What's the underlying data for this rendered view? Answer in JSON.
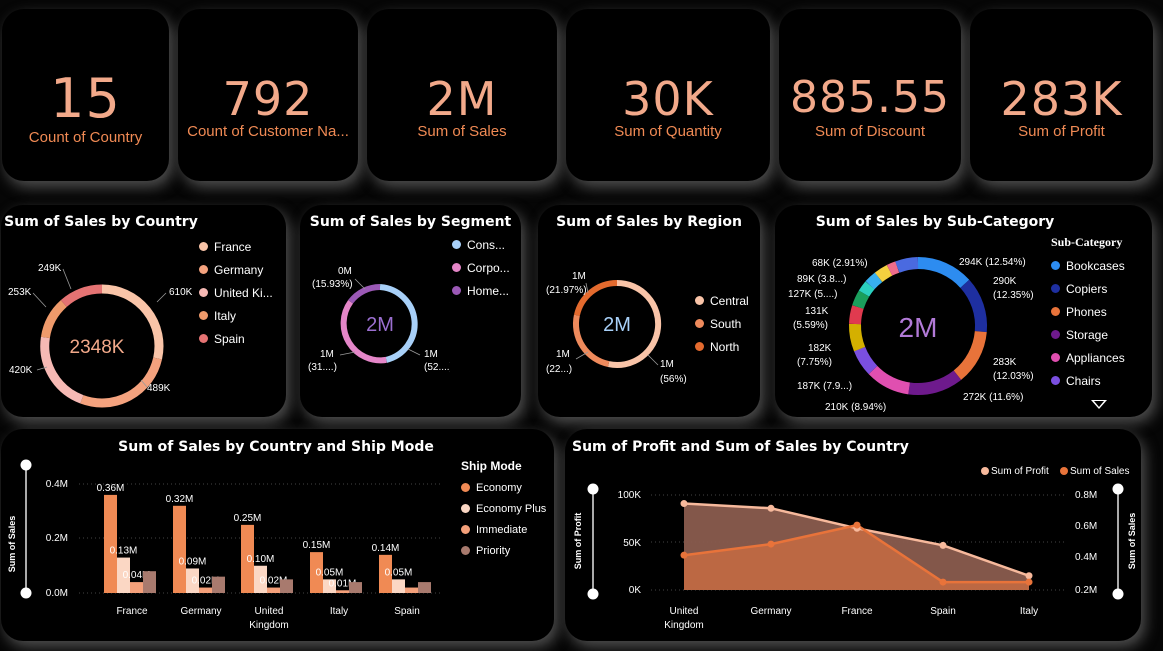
{
  "kpis": [
    {
      "value": "15",
      "label": "Count of Country"
    },
    {
      "value": "792",
      "label": "Count of Customer Na..."
    },
    {
      "value": "2M",
      "label": "Sum of Sales"
    },
    {
      "value": "30K",
      "label": "Sum of Quantity"
    },
    {
      "value": "885.55",
      "label": "Sum of Discount"
    },
    {
      "value": "283K",
      "label": "Sum of Profit"
    }
  ],
  "country_donut": {
    "title": "Sum of Sales by Country",
    "center": "2348K",
    "legend": [
      {
        "name": "France",
        "color": "#f9c4a8"
      },
      {
        "name": "Germany",
        "color": "#f4a27e"
      },
      {
        "name": "United Ki...",
        "color": "#f6b9b4"
      },
      {
        "name": "Italy",
        "color": "#ee9a6b"
      },
      {
        "name": "Spain",
        "color": "#e57373"
      }
    ],
    "labels": [
      "610K",
      "489K",
      "420K",
      "253K",
      "249K"
    ]
  },
  "segment_donut": {
    "title": "Sum of Sales by Segment",
    "center": "2M",
    "legend": [
      {
        "name": "Cons...",
        "color": "#a8d0f8"
      },
      {
        "name": "Corpo...",
        "color": "#e486c8"
      },
      {
        "name": "Home...",
        "color": "#9b59b6"
      }
    ],
    "labels": [
      "0M",
      "(15.93%)",
      "1M",
      "(52....)",
      "1M",
      "(31....)"
    ]
  },
  "region_donut": {
    "title": "Sum of Sales by Region",
    "center": "2M",
    "legend": [
      {
        "name": "Central",
        "color": "#f9c4a8"
      },
      {
        "name": "South",
        "color": "#ee8a5c"
      },
      {
        "name": "North",
        "color": "#e36a2e"
      }
    ],
    "labels": [
      "1M",
      "(21.97%)",
      "1M",
      "(22...)",
      "1M",
      "(56%)"
    ]
  },
  "subcat_donut": {
    "title": "Sum of Sales by Sub-Category",
    "center": "2M",
    "legend_title": "Sub-Category",
    "legend": [
      {
        "name": "Bookcases",
        "color": "#2d8cf0"
      },
      {
        "name": "Copiers",
        "color": "#1e2fa0"
      },
      {
        "name": "Phones",
        "color": "#e8733a"
      },
      {
        "name": "Storage",
        "color": "#6e1a8c"
      },
      {
        "name": "Appliances",
        "color": "#e04fb0"
      },
      {
        "name": "Chairs",
        "color": "#7a4fe0"
      }
    ],
    "labels": [
      "294K (12.54%)",
      "290K",
      "(12.35%)",
      "283K",
      "(12.03%)",
      "272K (11.6%)",
      "210K (8.94%)",
      "187K (7.9...)",
      "182K",
      "(7.75%)",
      "131K",
      "(5.59%)",
      "127K (5....)",
      "89K (3.8...)",
      "68K (2.91%)"
    ]
  },
  "shipmode_chart": {
    "title": "Sum of Sales by Country and Ship Mode",
    "ylabel": "Sum of Sales",
    "legend_title": "Ship Mode",
    "yticks": [
      "0.4M",
      "0.2M",
      "0.0M"
    ],
    "xtick_lines": [
      [
        "France"
      ],
      [
        "Germany"
      ],
      [
        "United",
        "Kingdom"
      ],
      [
        "Italy"
      ],
      [
        "Spain"
      ]
    ]
  },
  "profit_chart": {
    "title": "Sum of Profit and Sum of Sales by Country",
    "ylabel_left": "Sum of Profit",
    "ylabel_right": "Sum of Sales",
    "yticks_left": [
      "100K",
      "50K",
      "0K"
    ],
    "yticks_right": [
      "0.8M",
      "0.6M",
      "0.4M",
      "0.2M"
    ],
    "xtick_lines": [
      [
        "United",
        "Kingdom"
      ],
      [
        "Germany"
      ],
      [
        "France"
      ],
      [
        "Spain"
      ],
      [
        "Italy"
      ]
    ]
  },
  "chart_data": [
    {
      "type": "bar",
      "title": "Sum of Sales by Country and Ship Mode",
      "ylabel": "Sum of Sales",
      "xlabel": "",
      "ylim": [
        0,
        0.4
      ],
      "categories": [
        "France",
        "Germany",
        "United Kingdom",
        "Italy",
        "Spain"
      ],
      "series": [
        {
          "name": "Economy",
          "color": "#f08a54",
          "values": [
            0.36,
            0.32,
            0.25,
            0.15,
            0.14
          ]
        },
        {
          "name": "Economy Plus",
          "color": "#fbd7c4",
          "values": [
            0.13,
            0.09,
            0.1,
            0.05,
            0.05
          ]
        },
        {
          "name": "Immediate",
          "color": "#f4a07a",
          "values": [
            0.04,
            0.02,
            0.02,
            0.01,
            0.02
          ]
        },
        {
          "name": "Priority",
          "color": "#a87a6e",
          "values": [
            0.08,
            0.06,
            0.05,
            0.04,
            0.04
          ]
        }
      ],
      "data_labels": [
        [
          "0.36M",
          "0.13M",
          "0.04M",
          ""
        ],
        [
          "0.32M",
          "0.09M",
          "0.02M",
          ""
        ],
        [
          "0.25M",
          "0.10M",
          "0.02M",
          ""
        ],
        [
          "0.15M",
          "0.05M",
          "0.01M",
          ""
        ],
        [
          "0.14M",
          "0.05M",
          "",
          ""
        ]
      ],
      "legend": "top-right"
    },
    {
      "type": "area",
      "title": "Sum of Profit and Sum of Sales by Country",
      "categories": [
        "United Kingdom",
        "Germany",
        "France",
        "Spain",
        "Italy"
      ],
      "y_left": {
        "label": "Sum of Profit",
        "range": [
          0,
          100000
        ]
      },
      "y_right": {
        "label": "Sum of Sales",
        "range": [
          0.2,
          0.8
        ]
      },
      "series": [
        {
          "name": "Sum of Profit",
          "axis": "left",
          "color": "#f7b99c",
          "values": [
            91000,
            86000,
            65000,
            47000,
            15000
          ]
        },
        {
          "name": "Sum of Sales",
          "axis": "right",
          "color": "#e8733a",
          "values": [
            0.42,
            0.49,
            0.61,
            0.25,
            0.25
          ]
        }
      ],
      "legend": "top-right"
    }
  ]
}
